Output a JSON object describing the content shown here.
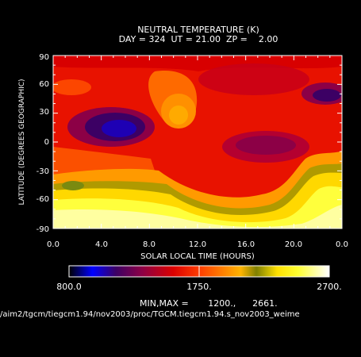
{
  "chart_data": {
    "type": "heatmap",
    "title": "NEUTRAL TEMPERATURE (K)",
    "subtitle": "DAY = 324  UT = 21.00  ZP =    2.00",
    "xlabel": "SOLAR LOCAL TIME (HOURS)",
    "ylabel": "LATITUDE (DEGREES GEOGRAPHIC)",
    "xlim": [
      0.0,
      24.0
    ],
    "ylim": [
      -90,
      90
    ],
    "x_tick_labels": [
      "0.0",
      "4.0",
      "8.0",
      "12.0",
      "16.0",
      "20.0",
      "0.0"
    ],
    "y_tick_labels": [
      "90",
      "60",
      "30",
      "0",
      "-30",
      "-60",
      "-90"
    ],
    "colorbar": {
      "min_label": "800.0",
      "mid_label": "1750.",
      "max_label": "2700.",
      "range": [
        800.0,
        2700.0
      ],
      "colors": [
        "#000000",
        "#0000ff",
        "#3c0064",
        "#8c0046",
        "#dc0000",
        "#ff3c00",
        "#ff7800",
        "#ffb400",
        "#ffe100",
        "#ffff32",
        "#ffffaa",
        "#ffffff"
      ]
    },
    "stats_text": "MIN,MAX =       1200.,      2661.",
    "file_path": "/aim2/tgcm/tiegcm1.94/nov2003/proc/TGCM.tiegcm1.94.s_nov2003_weime"
  }
}
